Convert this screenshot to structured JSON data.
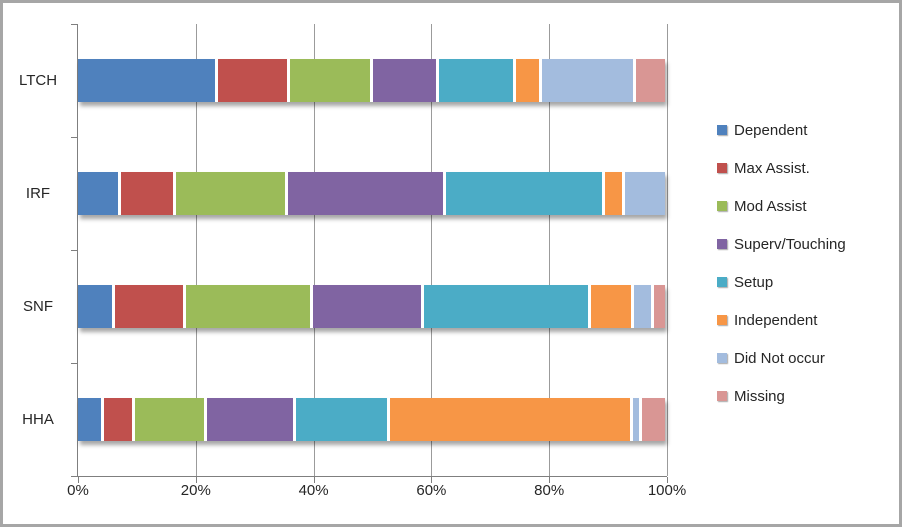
{
  "chart_data": {
    "type": "bar",
    "orientation": "horizontal",
    "stacked": "100%",
    "title": "",
    "xlabel": "",
    "ylabel": "",
    "categories": [
      "LTCH",
      "IRF",
      "SNF",
      "HHA"
    ],
    "series": [
      {
        "name": "Dependent",
        "color": "#4F81BD",
        "values": [
          24,
          7,
          6,
          4
        ]
      },
      {
        "name": "Max Assist.",
        "color": "#C0504D",
        "values": [
          12,
          9,
          12,
          5
        ]
      },
      {
        "name": "Mod Assist",
        "color": "#9BBB59",
        "values": [
          14,
          19,
          22,
          12
        ]
      },
      {
        "name": "Superv/Touching",
        "color": "#8064A2",
        "values": [
          11,
          27,
          19,
          15
        ]
      },
      {
        "name": "Setup",
        "color": "#4BACC6",
        "values": [
          13,
          27,
          29,
          16
        ]
      },
      {
        "name": "Independent",
        "color": "#F79646",
        "values": [
          4,
          3,
          7,
          42
        ]
      },
      {
        "name": "Did Not occur",
        "color": "#A3BCDE",
        "values": [
          16,
          7,
          3,
          1
        ]
      },
      {
        "name": "Missing",
        "color": "#D99694",
        "values": [
          5,
          0,
          2,
          4
        ]
      }
    ],
    "x_ticks": [
      "0%",
      "20%",
      "40%",
      "60%",
      "80%",
      "100%"
    ],
    "xlim": [
      0,
      100
    ],
    "grid": true,
    "legend_position": "right",
    "axis_color": "#7F7F7F",
    "gridline_color": "#9B9B9B",
    "text_color": "#262626"
  }
}
